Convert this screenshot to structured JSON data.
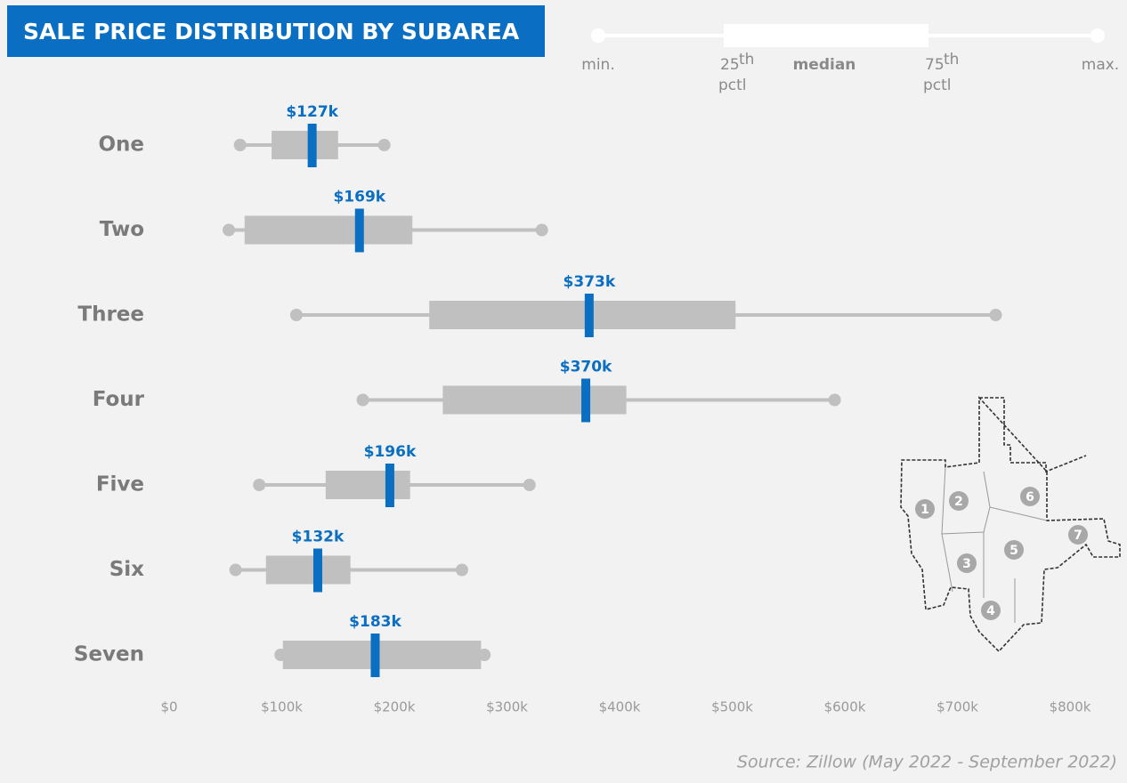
{
  "chart_data": {
    "type": "box",
    "title": "SALE PRICE DISTRIBUTION BY SUBAREA",
    "categories": [
      "One",
      "Two",
      "Three",
      "Four",
      "Five",
      "Six",
      "Seven"
    ],
    "min": [
      63000,
      53000,
      113000,
      172000,
      80000,
      59000,
      99000
    ],
    "q1": [
      91000,
      67000,
      231000,
      243000,
      139000,
      86000,
      101000
    ],
    "median": [
      127000,
      169000,
      373000,
      370000,
      196000,
      132000,
      183000
    ],
    "q3": [
      150000,
      216000,
      503000,
      406000,
      214000,
      161000,
      277000
    ],
    "max": [
      191000,
      331000,
      734000,
      591000,
      320000,
      260000,
      280000
    ],
    "value_labels": [
      "$127k",
      "$169k",
      "$373k",
      "$370k",
      "$196k",
      "$132k",
      "$183k"
    ],
    "box_color": "#c0c0c0",
    "median_color": "#0a6fc2",
    "xlim": [
      0,
      800000
    ],
    "xticks": [
      {
        "value": 0,
        "label": "$0"
      },
      {
        "value": 100000,
        "label": "$100k"
      },
      {
        "value": 200000,
        "label": "$200k"
      },
      {
        "value": 300000,
        "label": "$300k"
      },
      {
        "value": 400000,
        "label": "$400k"
      },
      {
        "value": 500000,
        "label": "$500k"
      },
      {
        "value": 600000,
        "label": "$600k"
      },
      {
        "value": 700000,
        "label": "$700k"
      },
      {
        "value": 800000,
        "label": "$800k"
      }
    ],
    "legend": [
      {
        "text": "min."
      },
      {
        "text": "25",
        "sup": "th",
        "line2": "pctl"
      },
      {
        "text": "median"
      },
      {
        "text": "75",
        "sup": "th",
        "line2": "pctl"
      },
      {
        "text": "max."
      }
    ],
    "map_labels": [
      "1",
      "2",
      "3",
      "4",
      "5",
      "6",
      "7"
    ],
    "source": "Source: Zillow (May 2022 - September 2022)"
  }
}
